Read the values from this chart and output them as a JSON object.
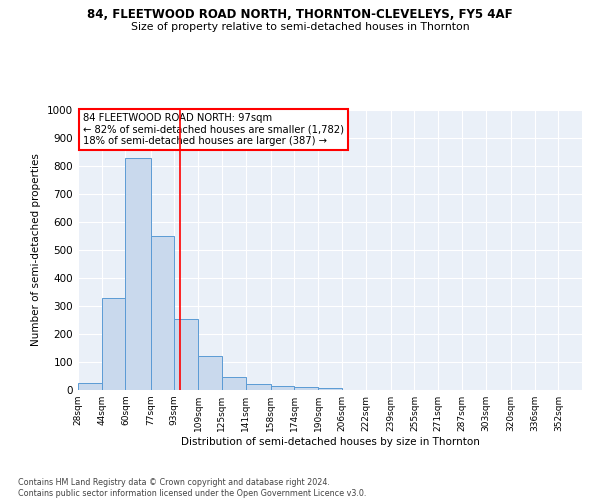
{
  "title1": "84, FLEETWOOD ROAD NORTH, THORNTON-CLEVELEYS, FY5 4AF",
  "title2": "Size of property relative to semi-detached houses in Thornton",
  "xlabel": "Distribution of semi-detached houses by size in Thornton",
  "ylabel": "Number of semi-detached properties",
  "footnote1": "Contains HM Land Registry data © Crown copyright and database right 2024.",
  "footnote2": "Contains public sector information licensed under the Open Government Licence v3.0.",
  "annotation_line1": "84 FLEETWOOD ROAD NORTH: 97sqm",
  "annotation_line2": "← 82% of semi-detached houses are smaller (1,782)",
  "annotation_line3": "18% of semi-detached houses are larger (387) →",
  "property_size": 97,
  "bar_labels": [
    "28sqm",
    "44sqm",
    "60sqm",
    "77sqm",
    "93sqm",
    "109sqm",
    "125sqm",
    "141sqm",
    "158sqm",
    "174sqm",
    "190sqm",
    "206sqm",
    "222sqm",
    "239sqm",
    "255sqm",
    "271sqm",
    "287sqm",
    "303sqm",
    "320sqm",
    "336sqm",
    "352sqm"
  ],
  "bar_values": [
    25,
    330,
    830,
    550,
    255,
    120,
    45,
    20,
    15,
    10,
    8,
    0,
    0,
    0,
    0,
    0,
    0,
    0,
    0,
    0,
    0
  ],
  "bar_edges": [
    28,
    44,
    60,
    77,
    93,
    109,
    125,
    141,
    158,
    174,
    190,
    206,
    222,
    239,
    255,
    271,
    287,
    303,
    320,
    336,
    352
  ],
  "bar_color": "#c9d9ed",
  "bar_edge_color": "#5b9bd5",
  "vline_x": 97,
  "vline_color": "#ff0000",
  "ylim": [
    0,
    1000
  ],
  "yticks": [
    0,
    100,
    200,
    300,
    400,
    500,
    600,
    700,
    800,
    900,
    1000
  ],
  "background_color": "#ffffff",
  "plot_bg_color": "#eaf0f8"
}
